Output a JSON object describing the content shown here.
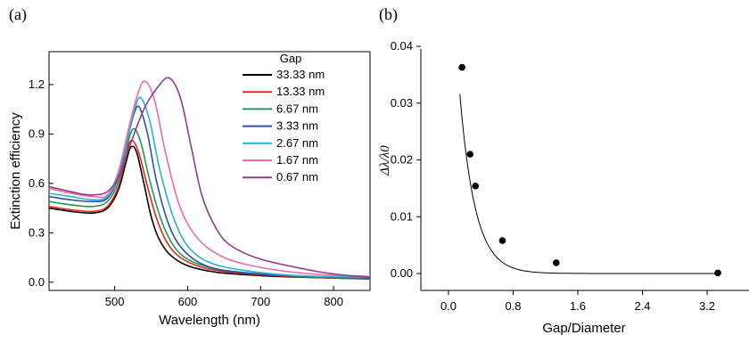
{
  "panel_a_label": "(a)",
  "panel_b_label": "(b)",
  "chart_data": [
    {
      "type": "line",
      "xlabel": "Wavelength (nm)",
      "ylabel": "Extinction efficiency",
      "xlim": [
        410,
        850
      ],
      "ylim": [
        -0.05,
        1.4
      ],
      "xticks": [
        500,
        600,
        700,
        800
      ],
      "yticks": [
        0.0,
        0.3,
        0.6,
        0.9,
        1.2
      ],
      "ytick_labels": [
        "0.0",
        "0.3",
        "0.6",
        "0.9",
        "1.2"
      ],
      "legend_title": "Gap",
      "legend_position": "top-right",
      "series": [
        {
          "name": "33.33 nm",
          "color": "#000000",
          "x": [
            410,
            440,
            470,
            490,
            505,
            515,
            522,
            530,
            540,
            550,
            560,
            575,
            600,
            640,
            700,
            760,
            800,
            850
          ],
          "y": [
            0.45,
            0.43,
            0.42,
            0.45,
            0.56,
            0.72,
            0.82,
            0.79,
            0.6,
            0.4,
            0.27,
            0.17,
            0.1,
            0.06,
            0.04,
            0.03,
            0.025,
            0.02
          ]
        },
        {
          "name": "13.33 nm",
          "color": "#e8231f",
          "x": [
            410,
            440,
            470,
            490,
            505,
            515,
            522,
            532,
            545,
            558,
            572,
            590,
            620,
            660,
            720,
            800,
            850
          ],
          "y": [
            0.46,
            0.44,
            0.43,
            0.46,
            0.58,
            0.76,
            0.86,
            0.8,
            0.58,
            0.38,
            0.24,
            0.15,
            0.09,
            0.06,
            0.04,
            0.025,
            0.02
          ]
        },
        {
          "name": "6.67 nm",
          "color": "#1f9b58",
          "x": [
            410,
            440,
            470,
            490,
            505,
            515,
            525,
            535,
            548,
            562,
            578,
            600,
            640,
            700,
            780,
            850
          ],
          "y": [
            0.49,
            0.47,
            0.46,
            0.49,
            0.61,
            0.8,
            0.93,
            0.86,
            0.62,
            0.4,
            0.24,
            0.14,
            0.08,
            0.05,
            0.03,
            0.025
          ]
        },
        {
          "name": "3.33 nm",
          "color": "#2e50a7",
          "x": [
            410,
            440,
            470,
            490,
            505,
            517,
            527,
            534,
            545,
            558,
            575,
            595,
            625,
            670,
            740,
            850
          ],
          "y": [
            0.52,
            0.5,
            0.49,
            0.51,
            0.64,
            0.86,
            1.03,
            1.06,
            0.9,
            0.6,
            0.34,
            0.19,
            0.1,
            0.06,
            0.04,
            0.025
          ]
        },
        {
          "name": "2.67 nm",
          "color": "#29b0d6",
          "x": [
            410,
            440,
            470,
            490,
            505,
            518,
            528,
            536,
            548,
            562,
            580,
            600,
            630,
            680,
            750,
            850
          ],
          "y": [
            0.54,
            0.52,
            0.5,
            0.52,
            0.65,
            0.88,
            1.06,
            1.12,
            0.98,
            0.68,
            0.4,
            0.22,
            0.12,
            0.07,
            0.04,
            0.03
          ]
        },
        {
          "name": "1.67 nm",
          "color": "#f06aa6",
          "x": [
            410,
            440,
            470,
            490,
            505,
            520,
            532,
            542,
            555,
            570,
            590,
            615,
            650,
            700,
            770,
            850
          ],
          "y": [
            0.57,
            0.54,
            0.52,
            0.53,
            0.67,
            0.95,
            1.15,
            1.22,
            1.1,
            0.78,
            0.45,
            0.26,
            0.15,
            0.09,
            0.05,
            0.035
          ]
        },
        {
          "name": "0.67 nm",
          "color": "#8f3a97",
          "x": [
            410,
            430,
            450,
            470,
            490,
            505,
            520,
            540,
            560,
            575,
            590,
            605,
            620,
            640,
            660,
            700,
            760,
            800,
            850
          ],
          "y": [
            0.58,
            0.56,
            0.54,
            0.53,
            0.55,
            0.64,
            0.82,
            1.05,
            1.19,
            1.24,
            1.12,
            0.82,
            0.52,
            0.32,
            0.22,
            0.14,
            0.08,
            0.05,
            0.03
          ]
        }
      ]
    },
    {
      "type": "scatter",
      "xlabel": "Gap/Diameter",
      "ylabel": "Δλ/λ0",
      "xlim": [
        -0.3,
        3.6
      ],
      "ylim": [
        -0.006,
        0.04
      ],
      "xticks": [
        0.0,
        0.8,
        1.6,
        2.4,
        3.2
      ],
      "xtick_labels": [
        "0.0",
        "0.8",
        "1.6",
        "2.4",
        "3.2"
      ],
      "yticks": [
        0.0,
        0.01,
        0.02,
        0.03,
        0.04
      ],
      "ytick_labels": [
        "0.00",
        "0.01",
        "0.02",
        "0.03",
        "0.04"
      ],
      "points": {
        "x": [
          0.167,
          0.267,
          0.333,
          0.667,
          1.333,
          3.333
        ],
        "y": [
          0.0363,
          0.021,
          0.0154,
          0.0058,
          0.0019,
          0.0001
        ]
      },
      "fit_curve": {
        "type": "exponential",
        "a": 0.066,
        "decay": 0.19,
        "offset": 0.0
      }
    }
  ]
}
